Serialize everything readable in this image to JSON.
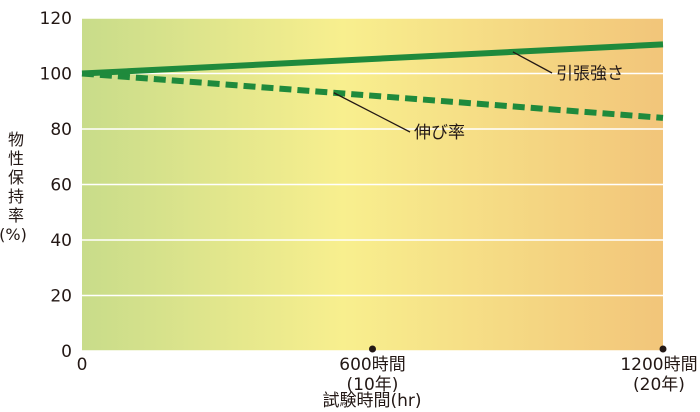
{
  "chart_data": {
    "type": "line",
    "x": [
      0,
      1200
    ],
    "xlim": [
      0,
      1200
    ],
    "ylim": [
      0,
      120
    ],
    "yticks": [
      0,
      20,
      40,
      60,
      80,
      100,
      120
    ],
    "ylabel_chars": [
      "物",
      "性",
      "保",
      "持",
      "率",
      "(%)"
    ],
    "xlabel": "試験時間(hr)",
    "xticks": [
      {
        "x": 0,
        "lines": [
          "0"
        ]
      },
      {
        "x": 600,
        "lines": [
          "600時間",
          "(10年)"
        ]
      },
      {
        "x": 1200,
        "lines": [
          "1200時間",
          "(20年)"
        ]
      }
    ],
    "series": [
      {
        "name": "引張強さ",
        "x": [
          0,
          1200
        ],
        "values": [
          100,
          110.5
        ],
        "style": "solid",
        "color": "#1f8a3c"
      },
      {
        "name": "伸び率",
        "x": [
          0,
          1200
        ],
        "values": [
          100,
          84
        ],
        "style": "dashed",
        "color": "#1f8a3c"
      }
    ],
    "grid": true,
    "background_gradient": [
      "#c8dc8a",
      "#f8ef8e",
      "#f2c57a"
    ]
  }
}
